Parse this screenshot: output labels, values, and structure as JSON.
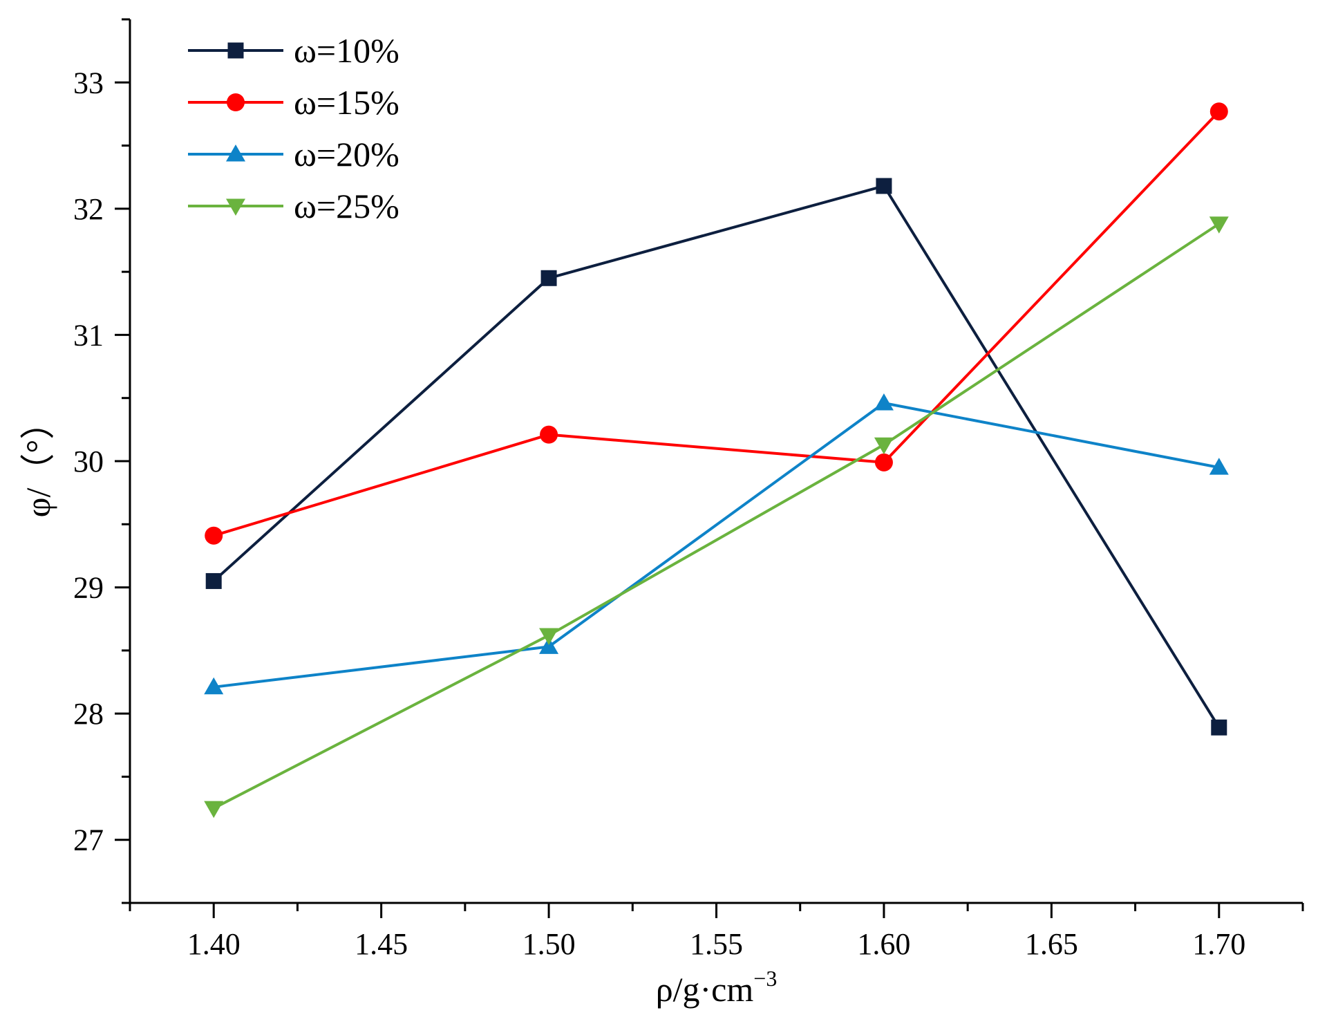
{
  "chart_data": {
    "type": "line",
    "title": "",
    "xlabel": "ρ/g·cm",
    "xlabel_superscript": "−3",
    "ylabel": "φ/（°）",
    "x": [
      1.4,
      1.5,
      1.6,
      1.7
    ],
    "xlim": [
      1.375,
      1.725
    ],
    "ylim": [
      26.5,
      33.5
    ],
    "xticks": [
      "1.40",
      "1.45",
      "1.50",
      "1.55",
      "1.60",
      "1.65",
      "1.70"
    ],
    "xtick_values": [
      1.4,
      1.45,
      1.5,
      1.55,
      1.6,
      1.65,
      1.7
    ],
    "yticks": [
      "27",
      "28",
      "29",
      "30",
      "31",
      "32",
      "33"
    ],
    "ytick_values": [
      27,
      28,
      29,
      30,
      31,
      32,
      33
    ],
    "grid": false,
    "legend_position": "top-left",
    "series": [
      {
        "name": "ω=10%",
        "values": [
          29.05,
          31.45,
          32.18,
          27.89
        ],
        "color": "#0d1f3f",
        "marker": "square"
      },
      {
        "name": "ω=15%",
        "values": [
          29.41,
          30.21,
          29.99,
          32.77
        ],
        "color": "#ff0000",
        "marker": "circle"
      },
      {
        "name": "ω=20%",
        "values": [
          28.21,
          28.53,
          30.46,
          29.95
        ],
        "color": "#0e83c8",
        "marker": "triangle-up"
      },
      {
        "name": "ω=25%",
        "values": [
          27.25,
          28.62,
          30.13,
          31.88
        ],
        "color": "#6ab33e",
        "marker": "triangle-down"
      }
    ]
  }
}
